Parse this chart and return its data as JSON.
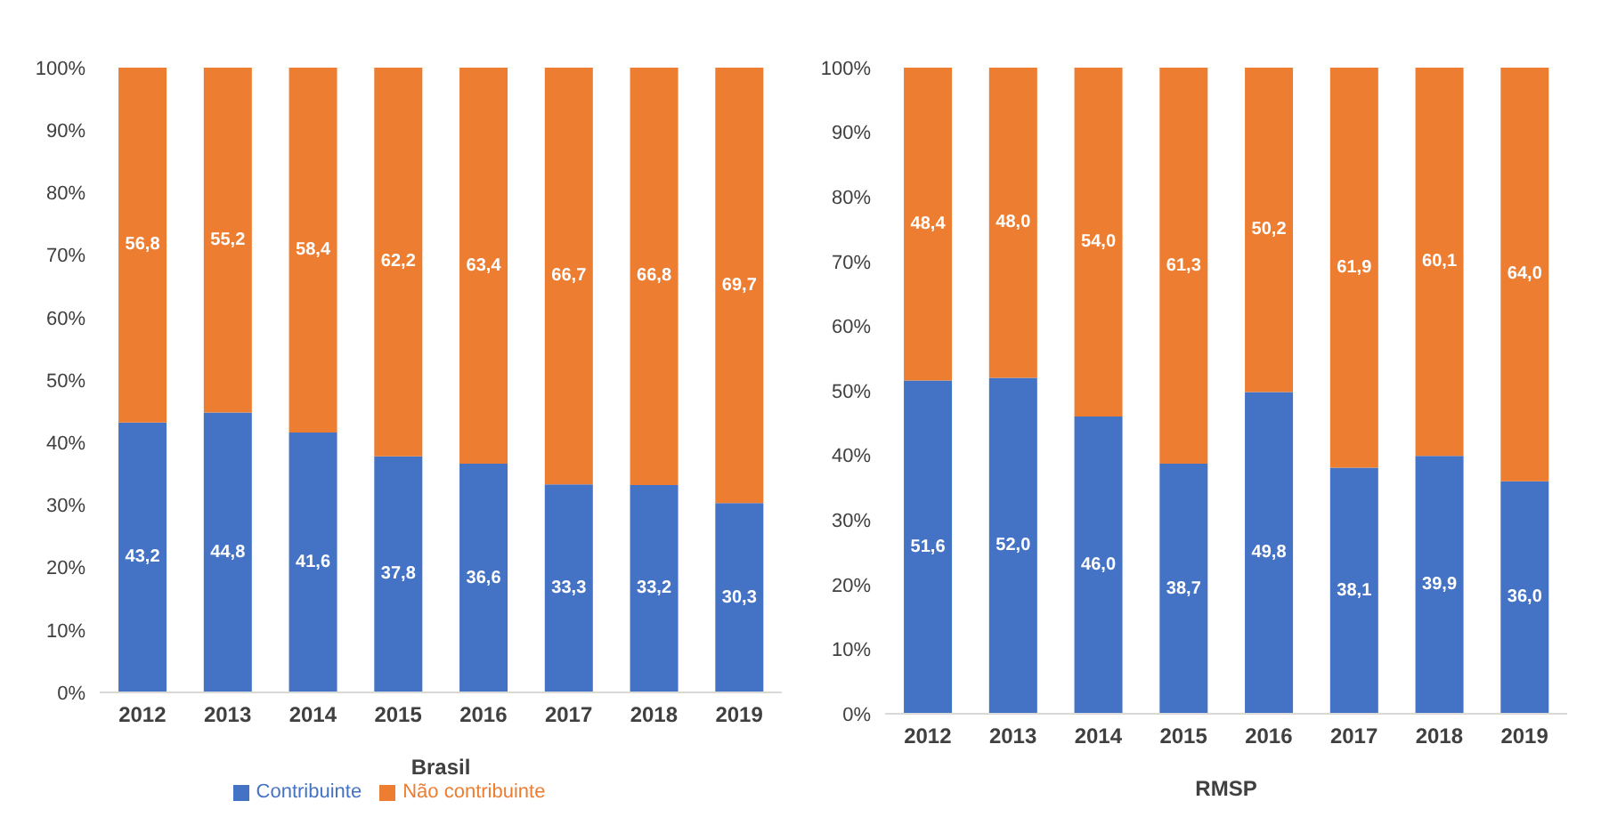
{
  "chart_data": [
    {
      "type": "bar",
      "stacked": true,
      "xlabel": "Brasil",
      "categories": [
        "2012",
        "2013",
        "2014",
        "2015",
        "2016",
        "2017",
        "2018",
        "2019"
      ],
      "ylim": [
        0,
        100
      ],
      "yticks": [
        {
          "value": 0,
          "label": "0%"
        },
        {
          "value": 10,
          "label": "10%"
        },
        {
          "value": 20,
          "label": "20%"
        },
        {
          "value": 30,
          "label": "30%"
        },
        {
          "value": 40,
          "label": "40%"
        },
        {
          "value": 50,
          "label": "50%"
        },
        {
          "value": 60,
          "label": "60%"
        },
        {
          "value": 70,
          "label": "70%"
        },
        {
          "value": 80,
          "label": "80%"
        },
        {
          "value": 90,
          "label": "90%"
        },
        {
          "value": 100,
          "label": "100%"
        }
      ],
      "legend": "bottom",
      "series": [
        {
          "name": "Contribuinte",
          "color": "#4472c4",
          "values": [
            43.2,
            44.8,
            41.6,
            37.8,
            36.6,
            33.3,
            33.2,
            30.3
          ],
          "value_labels": [
            "43,2",
            "44,8",
            "41,6",
            "37,8",
            "36,6",
            "33,3",
            "33,2",
            "30,3"
          ]
        },
        {
          "name": "Não contribuinte",
          "color": "#ed7d31",
          "values": [
            56.8,
            55.2,
            58.4,
            62.2,
            63.4,
            66.7,
            66.8,
            69.7
          ],
          "value_labels": [
            "56,8",
            "55,2",
            "58,4",
            "62,2",
            "63,4",
            "66,7",
            "66,8",
            "69,7"
          ]
        }
      ]
    },
    {
      "type": "bar",
      "stacked": true,
      "xlabel": "RMSP",
      "categories": [
        "2012",
        "2013",
        "2014",
        "2015",
        "2016",
        "2017",
        "2018",
        "2019"
      ],
      "ylim": [
        0,
        100
      ],
      "yticks": [
        {
          "value": 0,
          "label": "0%"
        },
        {
          "value": 10,
          "label": "10%"
        },
        {
          "value": 20,
          "label": "20%"
        },
        {
          "value": 30,
          "label": "30%"
        },
        {
          "value": 40,
          "label": "40%"
        },
        {
          "value": 50,
          "label": "50%"
        },
        {
          "value": 60,
          "label": "60%"
        },
        {
          "value": 70,
          "label": "70%"
        },
        {
          "value": 80,
          "label": "80%"
        },
        {
          "value": 90,
          "label": "90%"
        },
        {
          "value": 100,
          "label": "100%"
        }
      ],
      "series": [
        {
          "color": "#4472c4",
          "values": [
            51.6,
            52.0,
            46.0,
            38.7,
            49.8,
            38.1,
            39.9,
            36.0
          ],
          "value_labels": [
            "51,6",
            "52,0",
            "46,0",
            "38,7",
            "49,8",
            "38,1",
            "39,9",
            "36,0"
          ]
        },
        {
          "color": "#ed7d31",
          "values": [
            48.4,
            48.0,
            54.0,
            61.3,
            50.2,
            61.9,
            60.1,
            64.0
          ],
          "value_labels": [
            "48,4",
            "48,0",
            "54,0",
            "61,3",
            "50,2",
            "61,9",
            "60,1",
            "64,0"
          ]
        }
      ]
    }
  ]
}
